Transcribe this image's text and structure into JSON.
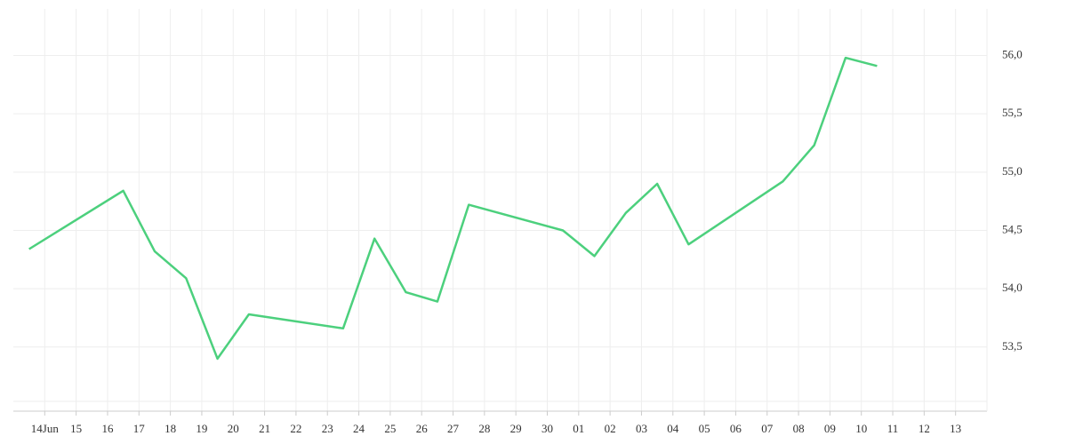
{
  "chart_data": {
    "type": "line",
    "x": [
      13.5,
      16.5,
      17.5,
      18.5,
      19.5,
      20.5,
      23.5,
      24.5,
      25.5,
      26.5,
      27.5,
      30.5,
      31.5,
      32.5,
      33.5,
      34.5,
      37.5,
      38.5,
      39.5,
      40.5
    ],
    "series": [
      {
        "color": "#4cd07d",
        "values": [
          54.34,
          54.84,
          54.32,
          54.09,
          53.4,
          53.78,
          53.66,
          54.43,
          53.97,
          53.89,
          54.72,
          54.5,
          54.28,
          54.65,
          54.9,
          54.38,
          54.92,
          55.23,
          55.98,
          55.91
        ]
      }
    ],
    "xlim": [
      13,
      44
    ],
    "xticks": [
      {
        "value": 14,
        "label": "14Jun"
      },
      15,
      16,
      17,
      18,
      19,
      20,
      21,
      22,
      23,
      24,
      25,
      26,
      27,
      28,
      29,
      30,
      {
        "value": 31,
        "label": "01"
      },
      {
        "value": 32,
        "label": "02"
      },
      {
        "value": 33,
        "label": "03"
      },
      {
        "value": 34,
        "label": "04"
      },
      {
        "value": 35,
        "label": "05"
      },
      {
        "value": 36,
        "label": "06"
      },
      {
        "value": 37,
        "label": "07"
      },
      {
        "value": 38,
        "label": "08"
      },
      {
        "value": 39,
        "label": "09"
      },
      {
        "value": 40,
        "label": "10"
      },
      {
        "value": 41,
        "label": "11"
      },
      {
        "value": 42,
        "label": "12"
      },
      {
        "value": 43,
        "label": "13"
      }
    ],
    "ylim": [
      52.95,
      56.4
    ],
    "yticks": [
      {
        "value": 53.5,
        "label": "53,5"
      },
      {
        "value": 54,
        "label": "54,0"
      },
      {
        "value": 54.5,
        "label": "54,5"
      },
      {
        "value": 55,
        "label": "55,0"
      },
      {
        "value": 55.5,
        "label": "55,5"
      },
      {
        "value": 56,
        "label": "56,0"
      }
    ],
    "grid": true
  }
}
